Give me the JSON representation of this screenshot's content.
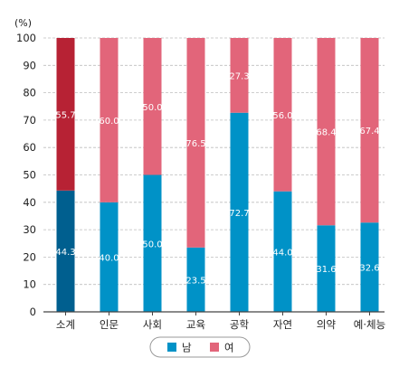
{
  "chart_data": {
    "type": "bar",
    "stacked": true,
    "unit_label": "(%)",
    "categories": [
      "소계",
      "인문",
      "사회",
      "교육",
      "공학",
      "자연",
      "의약",
      "예·체능"
    ],
    "series": [
      {
        "name": "남",
        "values": [
          44.3,
          40.0,
          50.0,
          23.5,
          72.7,
          44.0,
          31.6,
          32.6
        ],
        "labels": [
          "44.3",
          "40.0",
          "50.0",
          "23.5",
          "72.7",
          "44.0",
          "31.6",
          "32.6"
        ]
      },
      {
        "name": "여",
        "values": [
          55.7,
          60.0,
          50.0,
          76.5,
          27.3,
          56.0,
          68.4,
          67.4
        ],
        "labels": [
          "55.7",
          "60.0",
          "50.0",
          "76.5",
          "27.3",
          "56.0",
          "68.4",
          "67.4"
        ]
      }
    ],
    "ylim": [
      0,
      100
    ],
    "yticks": [
      "0",
      "10",
      "20",
      "30",
      "40",
      "50",
      "60",
      "70",
      "80",
      "90",
      "100"
    ],
    "grid": true,
    "legend_position": "bottom",
    "colors": {
      "male": "#0092C7",
      "female": "#E2657A",
      "male_total": "#005F8F",
      "female_total": "#B72234",
      "grid": "#BDBDBD",
      "axis": "#444444"
    }
  }
}
